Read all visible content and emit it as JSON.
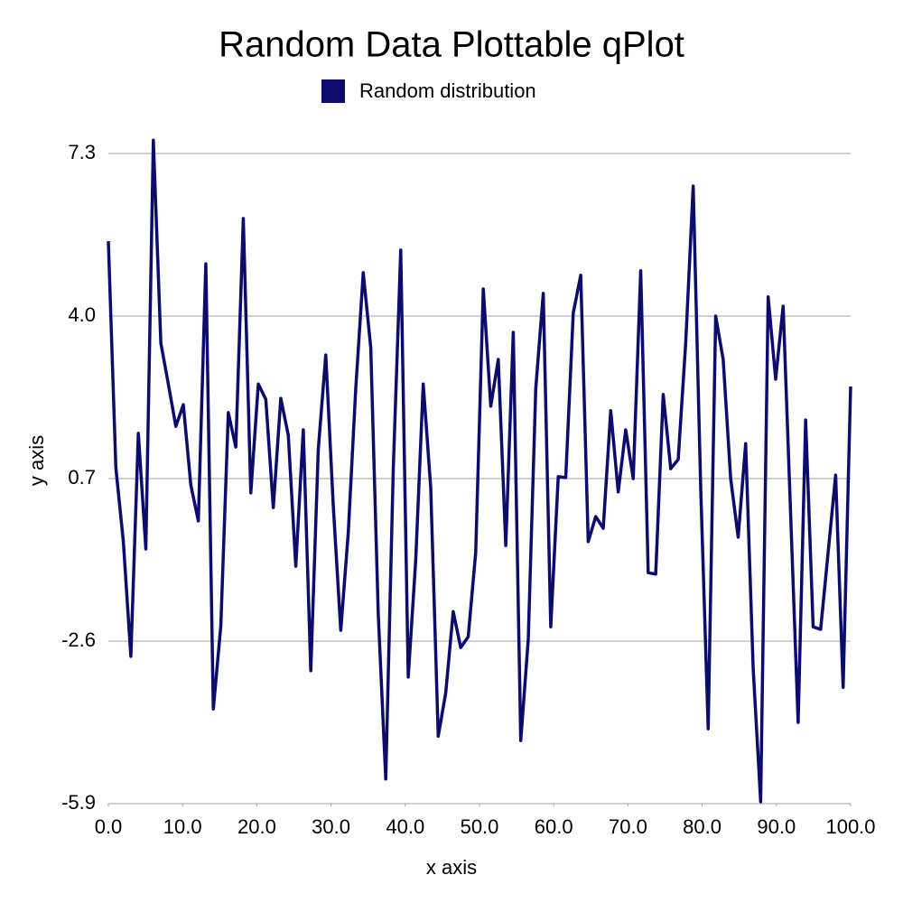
{
  "chart_data": {
    "type": "line",
    "title": "Random Data Plottable qPlot",
    "x_label": "x axis",
    "y_label": "y axis",
    "x": [
      0,
      1.01,
      2.02,
      3.03,
      4.04,
      5.05,
      6.06,
      7.07,
      8.08,
      9.09,
      10.1,
      11.11,
      12.12,
      13.13,
      14.14,
      15.15,
      16.16,
      17.17,
      18.18,
      19.19,
      20.2,
      21.21,
      22.22,
      23.23,
      24.24,
      25.25,
      26.26,
      27.27,
      28.28,
      29.29,
      30.3,
      31.31,
      32.32,
      33.33,
      34.34,
      35.35,
      36.36,
      37.37,
      38.38,
      39.39,
      40.4,
      41.41,
      42.42,
      43.43,
      44.44,
      45.45,
      46.46,
      47.47,
      48.48,
      49.49,
      50.51,
      51.52,
      52.53,
      53.54,
      54.55,
      55.56,
      56.57,
      57.58,
      58.59,
      59.6,
      60.61,
      61.62,
      62.63,
      63.64,
      64.65,
      65.66,
      66.67,
      67.68,
      68.69,
      69.7,
      70.71,
      71.72,
      72.73,
      73.74,
      74.75,
      75.76,
      76.77,
      77.78,
      78.79,
      79.8,
      80.81,
      81.82,
      82.83,
      83.84,
      84.85,
      85.86,
      86.87,
      87.88,
      88.89,
      89.9,
      90.91,
      91.92,
      92.93,
      93.94,
      94.95,
      95.96,
      96.97,
      97.98,
      98.99,
      100
    ],
    "series": [
      {
        "name": "Random distribution",
        "color": "#0c0c6e",
        "values": [
          5.52,
          0.92,
          -0.58,
          -2.91,
          1.62,
          -0.73,
          7.57,
          3.45,
          2.62,
          1.76,
          2.2,
          0.57,
          -0.16,
          5.06,
          -3.98,
          -2.29,
          2.04,
          1.34,
          5.98,
          0.41,
          2.62,
          2.31,
          0.11,
          2.33,
          1.58,
          -1.08,
          1.69,
          -3.2,
          1.29,
          3.21,
          0.15,
          -2.38,
          -0.4,
          2.53,
          4.88,
          3.36,
          -2.05,
          -5.4,
          0.88,
          5.34,
          -3.33,
          -0.95,
          2.62,
          0.52,
          -4.53,
          -3.65,
          -2.0,
          -2.73,
          -2.51,
          -0.8,
          4.55,
          2.17,
          3.12,
          -0.66,
          3.67,
          -4.62,
          -2.56,
          2.53,
          4.46,
          -2.31,
          0.74,
          0.72,
          4.06,
          4.83,
          -0.58,
          -0.07,
          -0.31,
          2.08,
          0.43,
          1.69,
          0.7,
          4.92,
          -1.21,
          -1.24,
          2.41,
          0.9,
          1.09,
          3.45,
          6.64,
          0.52,
          -4.38,
          4.0,
          3.12,
          0.7,
          -0.49,
          1.41,
          -3.15,
          -5.86,
          4.39,
          2.72,
          4.2,
          -0.03,
          -4.25,
          1.89,
          -2.31,
          -2.36,
          -0.8,
          0.77,
          -3.54,
          2.57
        ]
      }
    ],
    "xlim": [
      0,
      100
    ],
    "xticks": [
      {
        "value": 0,
        "label": "0.0"
      },
      {
        "value": 10,
        "label": "10.0"
      },
      {
        "value": 20,
        "label": "20.0"
      },
      {
        "value": 30,
        "label": "30.0"
      },
      {
        "value": 40,
        "label": "40.0"
      },
      {
        "value": 50,
        "label": "50.0"
      },
      {
        "value": 60,
        "label": "60.0"
      },
      {
        "value": 70,
        "label": "70.0"
      },
      {
        "value": 80,
        "label": "80.0"
      },
      {
        "value": 90,
        "label": "90.0"
      },
      {
        "value": 100,
        "label": "100.0"
      }
    ],
    "ylim": [
      -5.9,
      7.3
    ],
    "yticks": [
      -5.9,
      -2.6,
      0.7,
      {
        "value": 4,
        "label": "4.0"
      },
      7.3
    ],
    "grid": true,
    "legend": "top"
  }
}
